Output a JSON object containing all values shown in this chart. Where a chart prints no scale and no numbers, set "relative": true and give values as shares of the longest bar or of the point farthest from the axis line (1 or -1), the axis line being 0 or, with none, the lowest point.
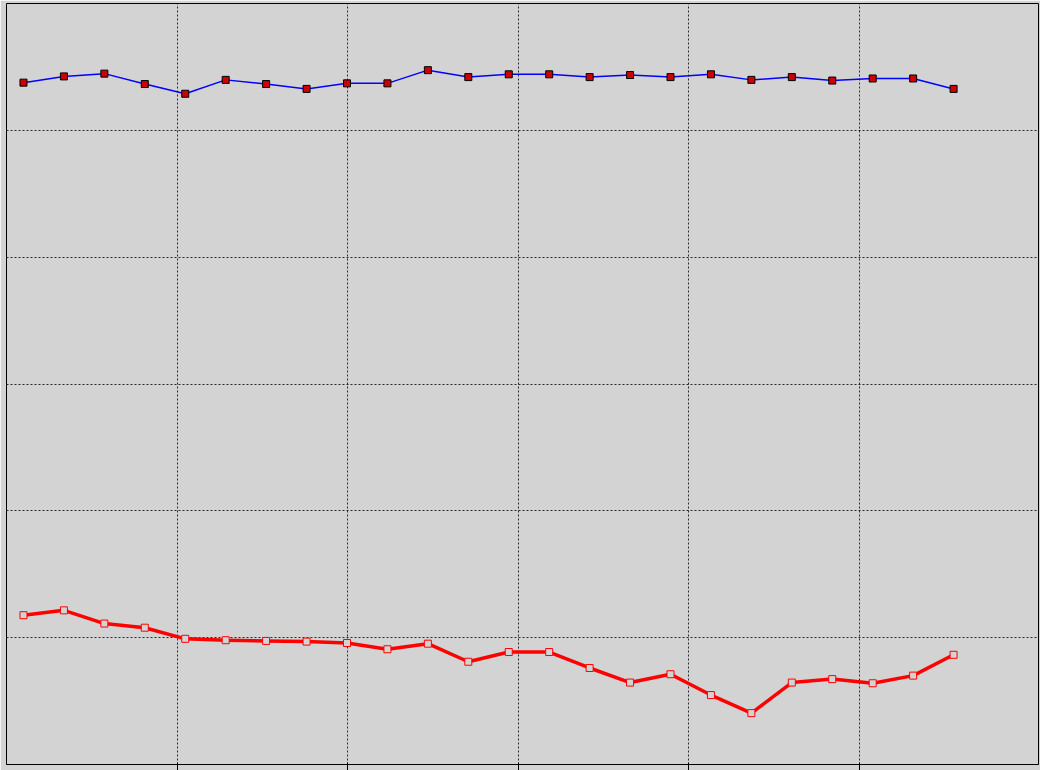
{
  "chart_data": {
    "type": "line",
    "relative": true,
    "grid": true,
    "line_style": "solid",
    "categories": [
      null,
      null,
      null,
      null,
      null,
      null,
      null,
      null,
      null,
      null,
      null,
      null,
      null,
      null,
      null,
      null,
      null,
      null,
      null,
      null,
      null,
      null,
      null,
      null
    ],
    "series": [
      {
        "color": "#0000ff",
        "marker": "square",
        "values": [
          0.982,
          0.991,
          0.995,
          0.98,
          0.966,
          0.986,
          0.98,
          0.973,
          0.981,
          0.981,
          1,
          0.99,
          0.994,
          0.994,
          0.99,
          0.993,
          0.99,
          0.994,
          0.986,
          0.99,
          0.985,
          0.988,
          0.988,
          0.973
        ]
      },
      {
        "color": "#ff0000",
        "marker": "square",
        "values": [
          0.215,
          0.222,
          0.203,
          0.197,
          0.181,
          0.179,
          0.178,
          0.177,
          0.175,
          0.166,
          0.174,
          0.148,
          0.162,
          0.162,
          0.139,
          0.118,
          0.13,
          0.1,
          0.074,
          0.118,
          0.123,
          0.117,
          0.128,
          0.158
        ]
      }
    ]
  }
}
